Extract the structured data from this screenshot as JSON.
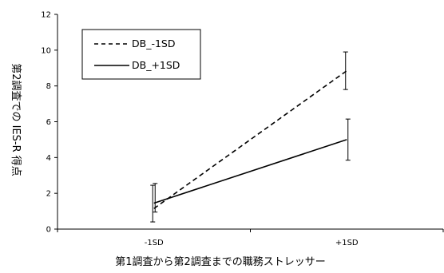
{
  "chart_data": {
    "type": "line",
    "title": "",
    "xlabel": "第1調査から第2調査までの職務ストレッサー",
    "ylabel": "第2調査での IES-R 得点",
    "categories": [
      "-1SD",
      "+1SD"
    ],
    "ylim": [
      0,
      12
    ],
    "yticks": [
      0,
      2,
      4,
      6,
      8,
      10,
      12
    ],
    "grid": false,
    "legend_position": "top-left",
    "series": [
      {
        "name": "DB_-1SD",
        "values": [
          1.15,
          8.85
        ],
        "error_low": [
          0.4,
          7.8
        ],
        "error_high": [
          2.45,
          9.9
        ],
        "line_style": "dashed",
        "color": "#000000"
      },
      {
        "name": "DB_+1SD",
        "values": [
          1.45,
          5.0
        ],
        "error_low": [
          0.95,
          3.85
        ],
        "error_high": [
          2.55,
          6.15
        ],
        "line_style": "solid",
        "color": "#000000"
      }
    ]
  }
}
